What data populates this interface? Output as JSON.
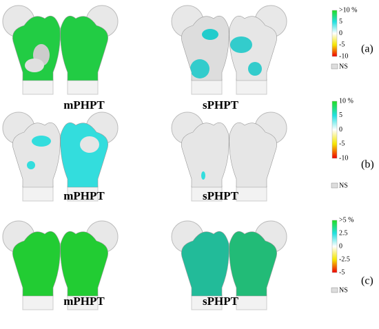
{
  "panels": [
    {
      "label": "(a)",
      "groups": [
        "mPHPT",
        "sPHPT"
      ],
      "scale": [
        ">10 %",
        "5",
        "0",
        "-5",
        "-10"
      ],
      "ns": "NS"
    },
    {
      "label": "(b)",
      "groups": [
        "mPHPT",
        "sPHPT"
      ],
      "scale": [
        "10 %",
        "5",
        "0",
        "-5",
        "-10"
      ],
      "ns": "NS"
    },
    {
      "label": "(c)",
      "groups": [
        "mPHPT",
        "sPHPT"
      ],
      "scale": [
        ">5 %",
        "2.5",
        "0",
        "-2.5",
        "-5"
      ],
      "ns": "NS"
    }
  ]
}
